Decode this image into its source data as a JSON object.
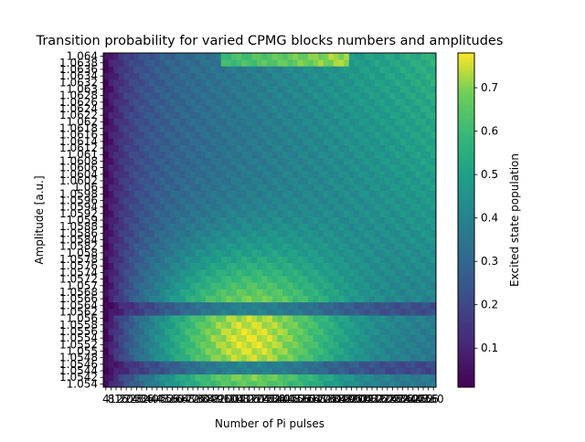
{
  "chart_data": {
    "type": "heatmap",
    "title": "Transition probability for varied CPMG blocks numbers and amplitudes",
    "xlabel": "Number of Pi pulses",
    "ylabel": "Amplitude [a.u.]",
    "colorbar_label": "Excited state population",
    "colormap": "viridis",
    "x": [
      4,
      8,
      12,
      16,
      20,
      24,
      28,
      32,
      36,
      40,
      44,
      48,
      52,
      56,
      60,
      64,
      68,
      72,
      76,
      80,
      84,
      88,
      92,
      96,
      100,
      104,
      108,
      112,
      116,
      120,
      124,
      128,
      132,
      136,
      140,
      144,
      148,
      152,
      156,
      160,
      164,
      168,
      172,
      176,
      180,
      184,
      188,
      192,
      196,
      200,
      204,
      208,
      212,
      216,
      220,
      224,
      228,
      232,
      236,
      240,
      244,
      248,
      252,
      256,
      260
    ],
    "x_tick_labels": [
      "4",
      "8",
      "12",
      "16",
      "20",
      "24",
      "28",
      "32",
      "36",
      "40",
      "44",
      "48",
      "52",
      "56",
      "60",
      "64",
      "68",
      "72",
      "76",
      "80",
      "84",
      "88",
      "92",
      "96",
      "100",
      "104",
      "108",
      "112",
      "116",
      "120",
      "124",
      "128",
      "132",
      "136",
      "140",
      "144",
      "148",
      "152",
      "156",
      "160",
      "164",
      "168",
      "172",
      "176",
      "180",
      "184",
      "188",
      "192",
      "196",
      "200",
      "204",
      "208",
      "212",
      "216",
      "220",
      "224",
      "228",
      "232",
      "236",
      "240",
      "244",
      "248",
      "252",
      "256",
      "260"
    ],
    "y": [
      1.054,
      1.0542,
      1.0544,
      1.0546,
      1.0548,
      1.055,
      1.0552,
      1.0554,
      1.0556,
      1.0558,
      1.056,
      1.0562,
      1.0564,
      1.0566,
      1.0568,
      1.057,
      1.0572,
      1.0574,
      1.0576,
      1.0578,
      1.058,
      1.0582,
      1.0584,
      1.0586,
      1.0588,
      1.059,
      1.0592,
      1.0594,
      1.0596,
      1.0598,
      1.06,
      1.0602,
      1.0604,
      1.0606,
      1.0608,
      1.061,
      1.0612,
      1.0614,
      1.0616,
      1.0618,
      1.062,
      1.0622,
      1.0624,
      1.0626,
      1.0628,
      1.063,
      1.0632,
      1.0634,
      1.0636,
      1.0638,
      1.064
    ],
    "y_tick_labels": [
      "1.054",
      "1.0542",
      "1.0544",
      "1.0546",
      "1.0548",
      "1.055",
      "1.0552",
      "1.0554",
      "1.0556",
      "1.0558",
      "1.056",
      "1.0562",
      "1.0564",
      "1.0566",
      "1.0568",
      "1.057",
      "1.0572",
      "1.0574",
      "1.0576",
      "1.0578",
      "1.058",
      "1.0582",
      "1.0584",
      "1.0586",
      "1.0588",
      "1.059",
      "1.0592",
      "1.0594",
      "1.0596",
      "1.0598",
      "1.06",
      "1.0602",
      "1.0604",
      "1.0606",
      "1.0608",
      "1.061",
      "1.0612",
      "1.0614",
      "1.0616",
      "1.0618",
      "1.062",
      "1.0622",
      "1.0624",
      "1.0626",
      "1.0628",
      "1.063",
      "1.0632",
      "1.0634",
      "1.0636",
      "1.0638",
      "1.064"
    ],
    "colorbar_ticks": [
      0.1,
      0.2,
      0.3,
      0.4,
      0.5,
      0.6,
      0.7
    ],
    "colorbar_tick_labels": [
      "0.1",
      "0.2",
      "0.3",
      "0.4",
      "0.5",
      "0.6",
      "0.7"
    ],
    "vmin": 0.01,
    "vmax": 0.78,
    "grid": false
  }
}
